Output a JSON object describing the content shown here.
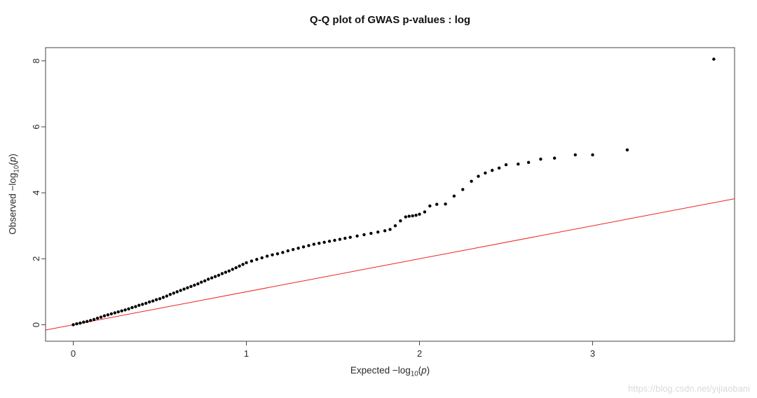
{
  "title": "Q-Q plot of GWAS p-values : log",
  "watermark": "https://blog.csdn.net/yijiaobani",
  "labels": {
    "x_word": "Expected ",
    "y_word": "Observed ",
    "neg_log": "−log",
    "sub": "10",
    "open": "(",
    "p": "p",
    "close": ")"
  },
  "chart_data": {
    "type": "scatter",
    "title": "Q-Q plot of GWAS p-values : log",
    "xlabel": "Expected −log10(p)",
    "ylabel": "Observed −log10(p)",
    "xlim": [
      -0.16,
      3.82
    ],
    "ylim": [
      -0.5,
      8.4
    ],
    "x_ticks": [
      0,
      1,
      2,
      3
    ],
    "y_ticks": [
      0,
      2,
      4,
      6,
      8
    ],
    "grid": false,
    "legend": "none",
    "point_color": "#000000",
    "point_radius": 2.2,
    "box_color": "#444444",
    "tick_label_color": "#2b2b2b",
    "reference_line": {
      "slope": 1,
      "intercept": 0,
      "color": "#ee2222"
    },
    "points": [
      [
        0,
        0
      ],
      [
        0.02,
        0.03
      ],
      [
        0.04,
        0.05
      ],
      [
        0.06,
        0.08
      ],
      [
        0.08,
        0.1
      ],
      [
        0.1,
        0.13
      ],
      [
        0.12,
        0.16
      ],
      [
        0.14,
        0.2
      ],
      [
        0.16,
        0.23
      ],
      [
        0.18,
        0.27
      ],
      [
        0.2,
        0.3
      ],
      [
        0.22,
        0.33
      ],
      [
        0.24,
        0.36
      ],
      [
        0.26,
        0.39
      ],
      [
        0.28,
        0.42
      ],
      [
        0.3,
        0.45
      ],
      [
        0.32,
        0.48
      ],
      [
        0.34,
        0.52
      ],
      [
        0.36,
        0.55
      ],
      [
        0.38,
        0.59
      ],
      [
        0.4,
        0.62
      ],
      [
        0.42,
        0.65
      ],
      [
        0.44,
        0.69
      ],
      [
        0.46,
        0.72
      ],
      [
        0.48,
        0.76
      ],
      [
        0.5,
        0.79
      ],
      [
        0.52,
        0.83
      ],
      [
        0.54,
        0.87
      ],
      [
        0.56,
        0.92
      ],
      [
        0.58,
        0.96
      ],
      [
        0.6,
        1.0
      ],
      [
        0.62,
        1.04
      ],
      [
        0.64,
        1.08
      ],
      [
        0.66,
        1.12
      ],
      [
        0.68,
        1.16
      ],
      [
        0.7,
        1.2
      ],
      [
        0.72,
        1.24
      ],
      [
        0.74,
        1.29
      ],
      [
        0.76,
        1.33
      ],
      [
        0.78,
        1.38
      ],
      [
        0.8,
        1.42
      ],
      [
        0.82,
        1.46
      ],
      [
        0.84,
        1.5
      ],
      [
        0.86,
        1.55
      ],
      [
        0.88,
        1.59
      ],
      [
        0.9,
        1.63
      ],
      [
        0.92,
        1.68
      ],
      [
        0.94,
        1.73
      ],
      [
        0.96,
        1.78
      ],
      [
        0.98,
        1.83
      ],
      [
        1.0,
        1.88
      ],
      [
        1.03,
        1.93
      ],
      [
        1.06,
        1.98
      ],
      [
        1.09,
        2.03
      ],
      [
        1.12,
        2.08
      ],
      [
        1.15,
        2.12
      ],
      [
        1.18,
        2.15
      ],
      [
        1.21,
        2.19
      ],
      [
        1.24,
        2.24
      ],
      [
        1.27,
        2.28
      ],
      [
        1.3,
        2.32
      ],
      [
        1.33,
        2.36
      ],
      [
        1.36,
        2.4
      ],
      [
        1.39,
        2.44
      ],
      [
        1.42,
        2.47
      ],
      [
        1.45,
        2.5
      ],
      [
        1.48,
        2.53
      ],
      [
        1.51,
        2.56
      ],
      [
        1.54,
        2.59
      ],
      [
        1.57,
        2.62
      ],
      [
        1.6,
        2.65
      ],
      [
        1.64,
        2.69
      ],
      [
        1.68,
        2.73
      ],
      [
        1.72,
        2.77
      ],
      [
        1.76,
        2.81
      ],
      [
        1.8,
        2.85
      ],
      [
        1.83,
        2.89
      ],
      [
        1.86,
        3.0
      ],
      [
        1.89,
        3.15
      ],
      [
        1.92,
        3.27
      ],
      [
        1.94,
        3.29
      ],
      [
        1.96,
        3.3
      ],
      [
        1.98,
        3.32
      ],
      [
        2.0,
        3.35
      ],
      [
        2.03,
        3.42
      ],
      [
        2.06,
        3.6
      ],
      [
        2.1,
        3.65
      ],
      [
        2.15,
        3.66
      ],
      [
        2.2,
        3.9
      ],
      [
        2.25,
        4.1
      ],
      [
        2.3,
        4.35
      ],
      [
        2.34,
        4.5
      ],
      [
        2.38,
        4.6
      ],
      [
        2.42,
        4.68
      ],
      [
        2.46,
        4.75
      ],
      [
        2.5,
        4.85
      ],
      [
        2.57,
        4.87
      ],
      [
        2.63,
        4.92
      ],
      [
        2.7,
        5.02
      ],
      [
        2.78,
        5.05
      ],
      [
        2.9,
        5.15
      ],
      [
        3.0,
        5.15
      ],
      [
        3.2,
        5.3
      ],
      [
        3.7,
        8.05
      ]
    ]
  }
}
